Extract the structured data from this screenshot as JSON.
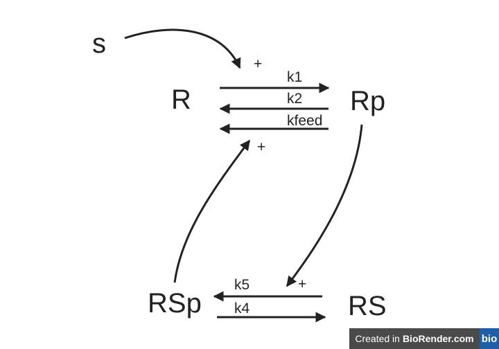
{
  "nodes": {
    "s": "s",
    "r": "R",
    "rp": "Rp",
    "rsp": "RSp",
    "rs": "RS"
  },
  "rates": {
    "k1": "k1",
    "k2": "k2",
    "kfeed": "kfeed",
    "k4": "k4",
    "k5": "k5"
  },
  "signs": {
    "s_to_k1": "+",
    "rsp_to_kfeed": "+",
    "rp_to_k5": "+"
  },
  "colors": {
    "ink": "#222222",
    "badge_bg": "#4a4a4a",
    "badge_logo_bg": "#1f5fa8"
  },
  "badge": {
    "prefix": "Created in",
    "brand": "BioRender.com",
    "logo": "bio"
  }
}
